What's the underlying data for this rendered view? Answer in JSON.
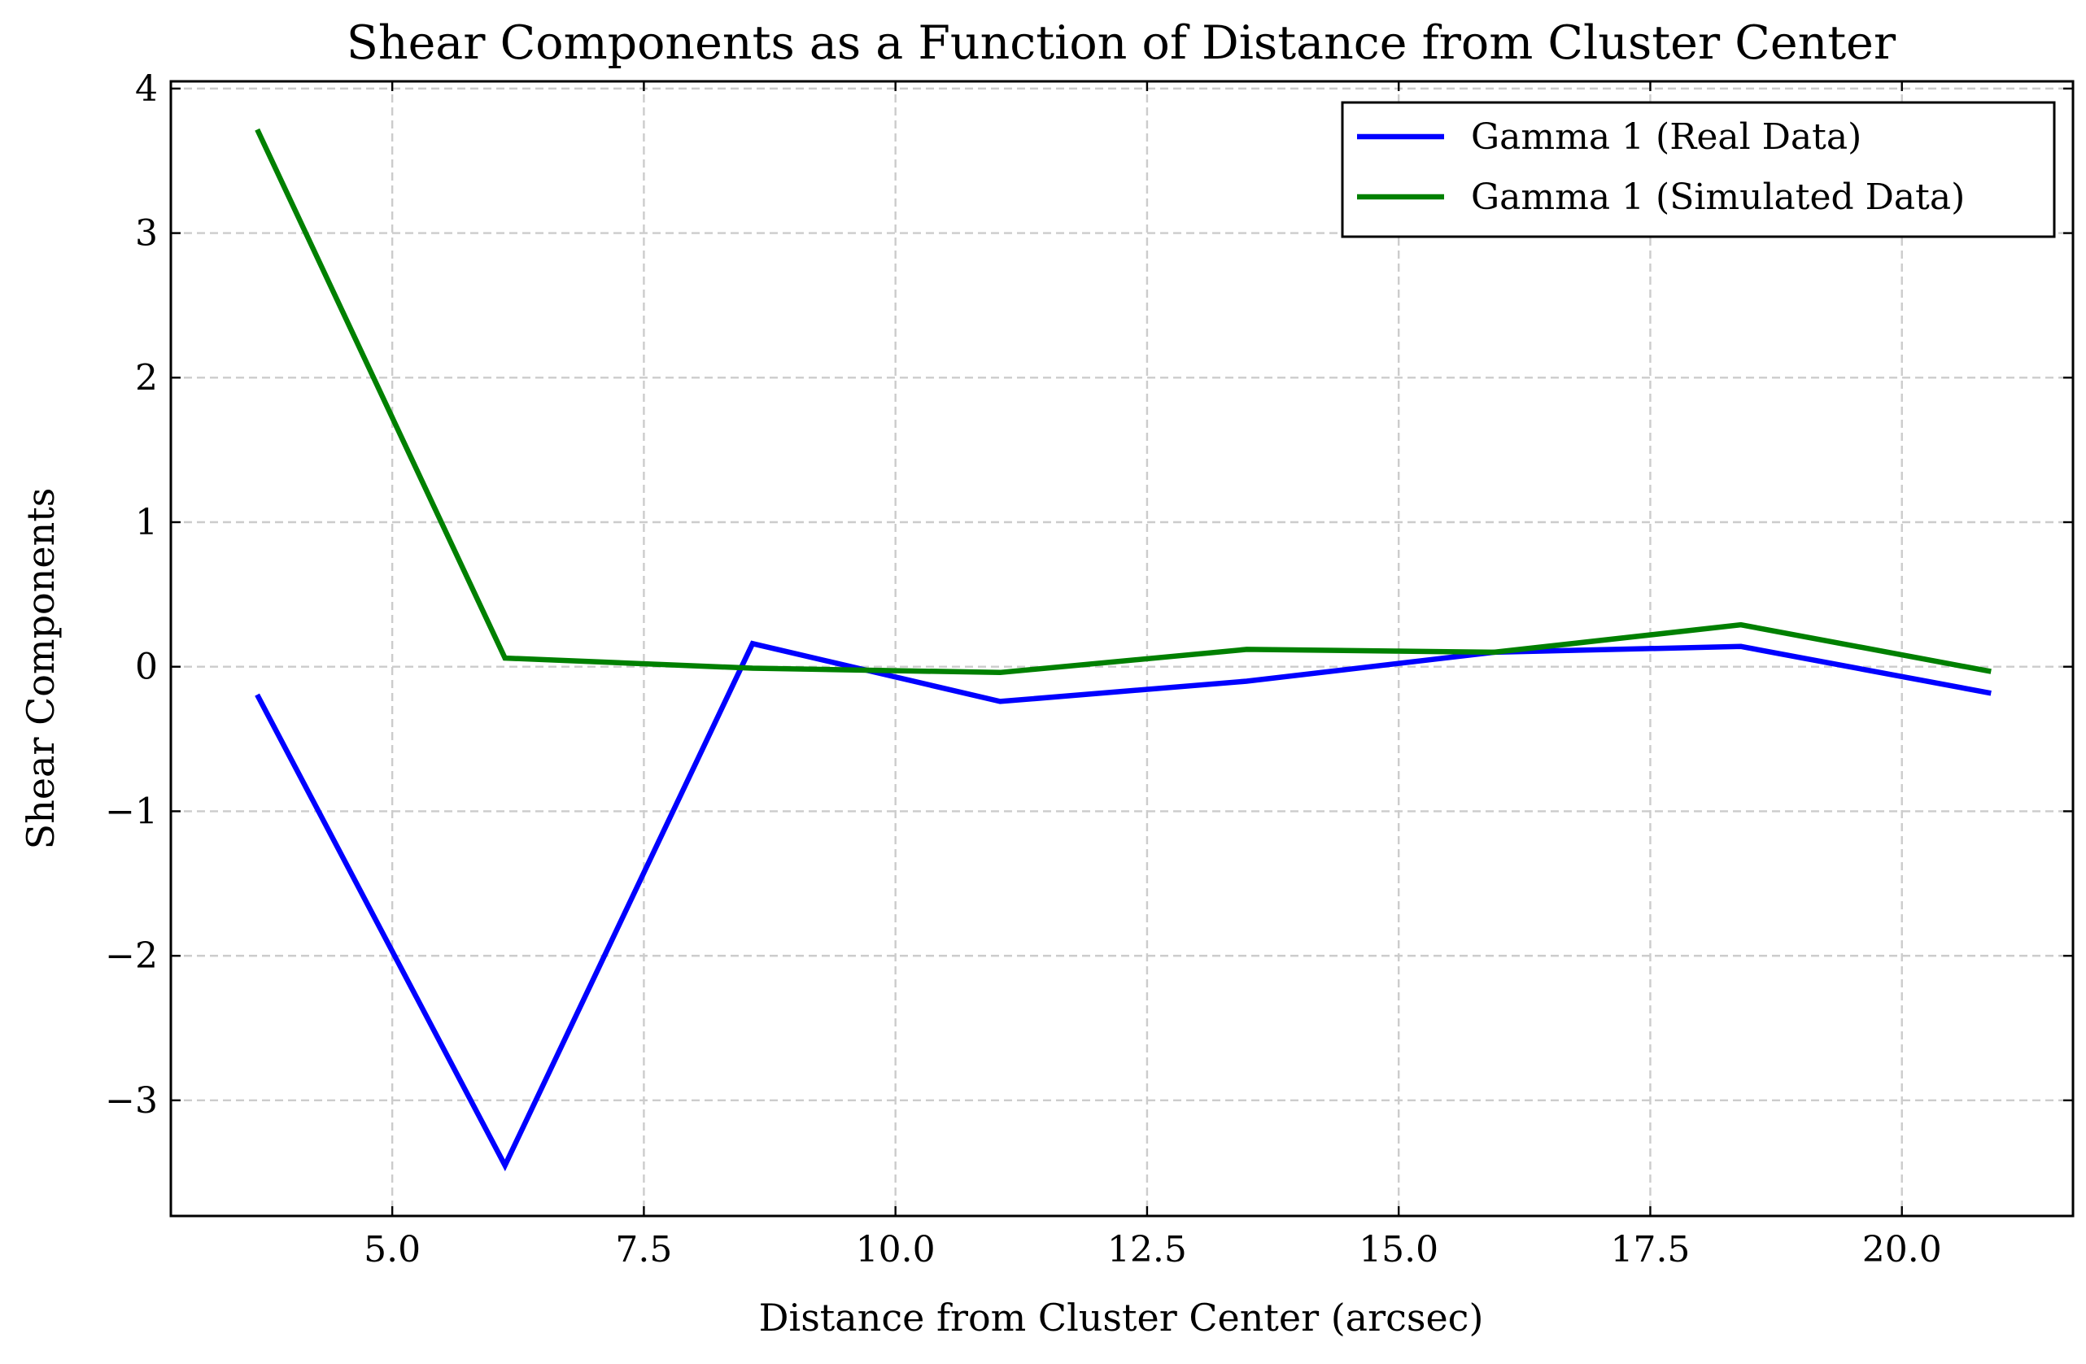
{
  "chart_data": {
    "type": "line",
    "title": "Shear Components as a Function of Distance from Cluster Center",
    "xlabel": "Distance from Cluster Center (arcsec)",
    "ylabel": "Shear Components",
    "xlim": [
      2.8,
      21.7
    ],
    "ylim": [
      -3.8,
      4.05
    ],
    "xticks": [
      5.0,
      7.5,
      10.0,
      12.5,
      15.0,
      17.5,
      20.0
    ],
    "xtick_labels": [
      "5.0",
      "7.5",
      "10.0",
      "12.5",
      "15.0",
      "17.5",
      "20.0"
    ],
    "yticks": [
      -3,
      -2,
      -1,
      0,
      1,
      2,
      3,
      4
    ],
    "ytick_labels": [
      "−3",
      "−2",
      "−1",
      "0",
      "1",
      "2",
      "3",
      "4"
    ],
    "grid": true,
    "legend_position": "top-right",
    "series": [
      {
        "name": "Gamma 1 (Real Data)",
        "color": "#0000ff",
        "x": [
          3.67,
          6.12,
          8.58,
          11.04,
          13.49,
          15.95,
          18.4,
          20.86
        ],
        "y": [
          -0.21,
          -3.45,
          0.16,
          -0.24,
          -0.1,
          0.1,
          0.14,
          -0.18
        ]
      },
      {
        "name": "Gamma 1 (Simulated Data)",
        "color": "#008000",
        "x": [
          3.67,
          6.12,
          8.58,
          11.04,
          13.49,
          15.95,
          18.4,
          20.86
        ],
        "y": [
          3.7,
          0.06,
          -0.01,
          -0.04,
          0.12,
          0.1,
          0.29,
          -0.03
        ]
      }
    ]
  }
}
